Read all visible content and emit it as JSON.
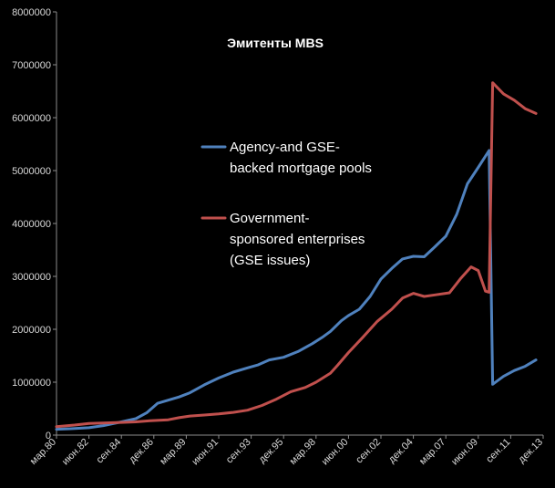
{
  "chart_data": {
    "type": "line",
    "title": "Эмитенты MBS",
    "xlabel": "",
    "ylabel": "",
    "ylim": [
      0,
      8000000
    ],
    "yticks": [
      0,
      1000000,
      2000000,
      3000000,
      4000000,
      5000000,
      6000000,
      7000000,
      8000000
    ],
    "ytick_labels": [
      "0",
      "1000000",
      "2000000",
      "3000000",
      "4000000",
      "5000000",
      "6000000",
      "7000000",
      "8000000"
    ],
    "xlim": [
      "1980-03",
      "2013-12"
    ],
    "xticks": [
      "1980-03",
      "1982-06",
      "1984-09",
      "1986-12",
      "1989-03",
      "1991-06",
      "1993-09",
      "1995-12",
      "1998-03",
      "2000-06",
      "2002-09",
      "2004-12",
      "2007-03",
      "2009-06",
      "2011-09",
      "2013-12"
    ],
    "xtick_labels": [
      "мар.80",
      "июн.82",
      "сен.84",
      "дек.86",
      "мар.89",
      "июн.91",
      "сен.93",
      "дек.95",
      "мар.98",
      "июн.00",
      "сен.02",
      "дек.04",
      "мар.07",
      "июн.09",
      "сен.11",
      "дек.13"
    ],
    "grid": false,
    "legend_position": "center-right",
    "series": [
      {
        "name": "Agency-and GSE-backed mortgage pools",
        "color": "#4f81bd",
        "points": [
          [
            "1980-03",
            110000
          ],
          [
            "1981-03",
            120000
          ],
          [
            "1982-06",
            140000
          ],
          [
            "1983-06",
            180000
          ],
          [
            "1984-09",
            250000
          ],
          [
            "1985-09",
            310000
          ],
          [
            "1986-06",
            420000
          ],
          [
            "1987-03",
            600000
          ],
          [
            "1987-12",
            660000
          ],
          [
            "1988-09",
            720000
          ],
          [
            "1989-06",
            800000
          ],
          [
            "1990-06",
            950000
          ],
          [
            "1991-06",
            1080000
          ],
          [
            "1992-06",
            1190000
          ],
          [
            "1993-06",
            1270000
          ],
          [
            "1994-03",
            1330000
          ],
          [
            "1994-12",
            1420000
          ],
          [
            "1995-12",
            1470000
          ],
          [
            "1996-12",
            1580000
          ],
          [
            "1997-12",
            1730000
          ],
          [
            "1998-09",
            1860000
          ],
          [
            "1999-03",
            1960000
          ],
          [
            "1999-12",
            2160000
          ],
          [
            "2000-06",
            2260000
          ],
          [
            "2001-03",
            2380000
          ],
          [
            "2001-12",
            2620000
          ],
          [
            "2002-09",
            2950000
          ],
          [
            "2003-06",
            3150000
          ],
          [
            "2004-03",
            3330000
          ],
          [
            "2004-12",
            3380000
          ],
          [
            "2005-09",
            3370000
          ],
          [
            "2006-06",
            3560000
          ],
          [
            "2007-03",
            3760000
          ],
          [
            "2007-12",
            4170000
          ],
          [
            "2008-09",
            4750000
          ],
          [
            "2009-06",
            5060000
          ],
          [
            "2010-03",
            5380000
          ],
          [
            "2010-06",
            960000
          ],
          [
            "2011-03",
            1110000
          ],
          [
            "2011-12",
            1220000
          ],
          [
            "2012-09",
            1300000
          ],
          [
            "2013-06",
            1420000
          ]
        ]
      },
      {
        "name": "Government-sponsored enterprises (GSE issues)",
        "color": "#c0504d",
        "points": [
          [
            "1980-03",
            160000
          ],
          [
            "1981-06",
            190000
          ],
          [
            "1982-06",
            220000
          ],
          [
            "1983-06",
            230000
          ],
          [
            "1984-09",
            240000
          ],
          [
            "1985-09",
            250000
          ],
          [
            "1986-09",
            270000
          ],
          [
            "1987-12",
            290000
          ],
          [
            "1988-09",
            330000
          ],
          [
            "1989-06",
            360000
          ],
          [
            "1990-06",
            380000
          ],
          [
            "1991-06",
            400000
          ],
          [
            "1992-06",
            430000
          ],
          [
            "1993-06",
            470000
          ],
          [
            "1994-06",
            560000
          ],
          [
            "1995-06",
            680000
          ],
          [
            "1996-06",
            820000
          ],
          [
            "1997-06",
            900000
          ],
          [
            "1998-03",
            1000000
          ],
          [
            "1999-03",
            1170000
          ],
          [
            "1999-09",
            1320000
          ],
          [
            "2000-06",
            1560000
          ],
          [
            "2001-06",
            1850000
          ],
          [
            "2002-06",
            2150000
          ],
          [
            "2003-06",
            2380000
          ],
          [
            "2004-03",
            2590000
          ],
          [
            "2004-12",
            2680000
          ],
          [
            "2005-09",
            2620000
          ],
          [
            "2006-06",
            2650000
          ],
          [
            "2007-06",
            2690000
          ],
          [
            "2008-03",
            2950000
          ],
          [
            "2008-12",
            3180000
          ],
          [
            "2009-06",
            3110000
          ],
          [
            "2009-12",
            2720000
          ],
          [
            "2010-03",
            2700000
          ],
          [
            "2010-06",
            6660000
          ],
          [
            "2011-03",
            6450000
          ],
          [
            "2011-12",
            6330000
          ],
          [
            "2012-09",
            6170000
          ],
          [
            "2013-06",
            6080000
          ]
        ]
      }
    ]
  }
}
